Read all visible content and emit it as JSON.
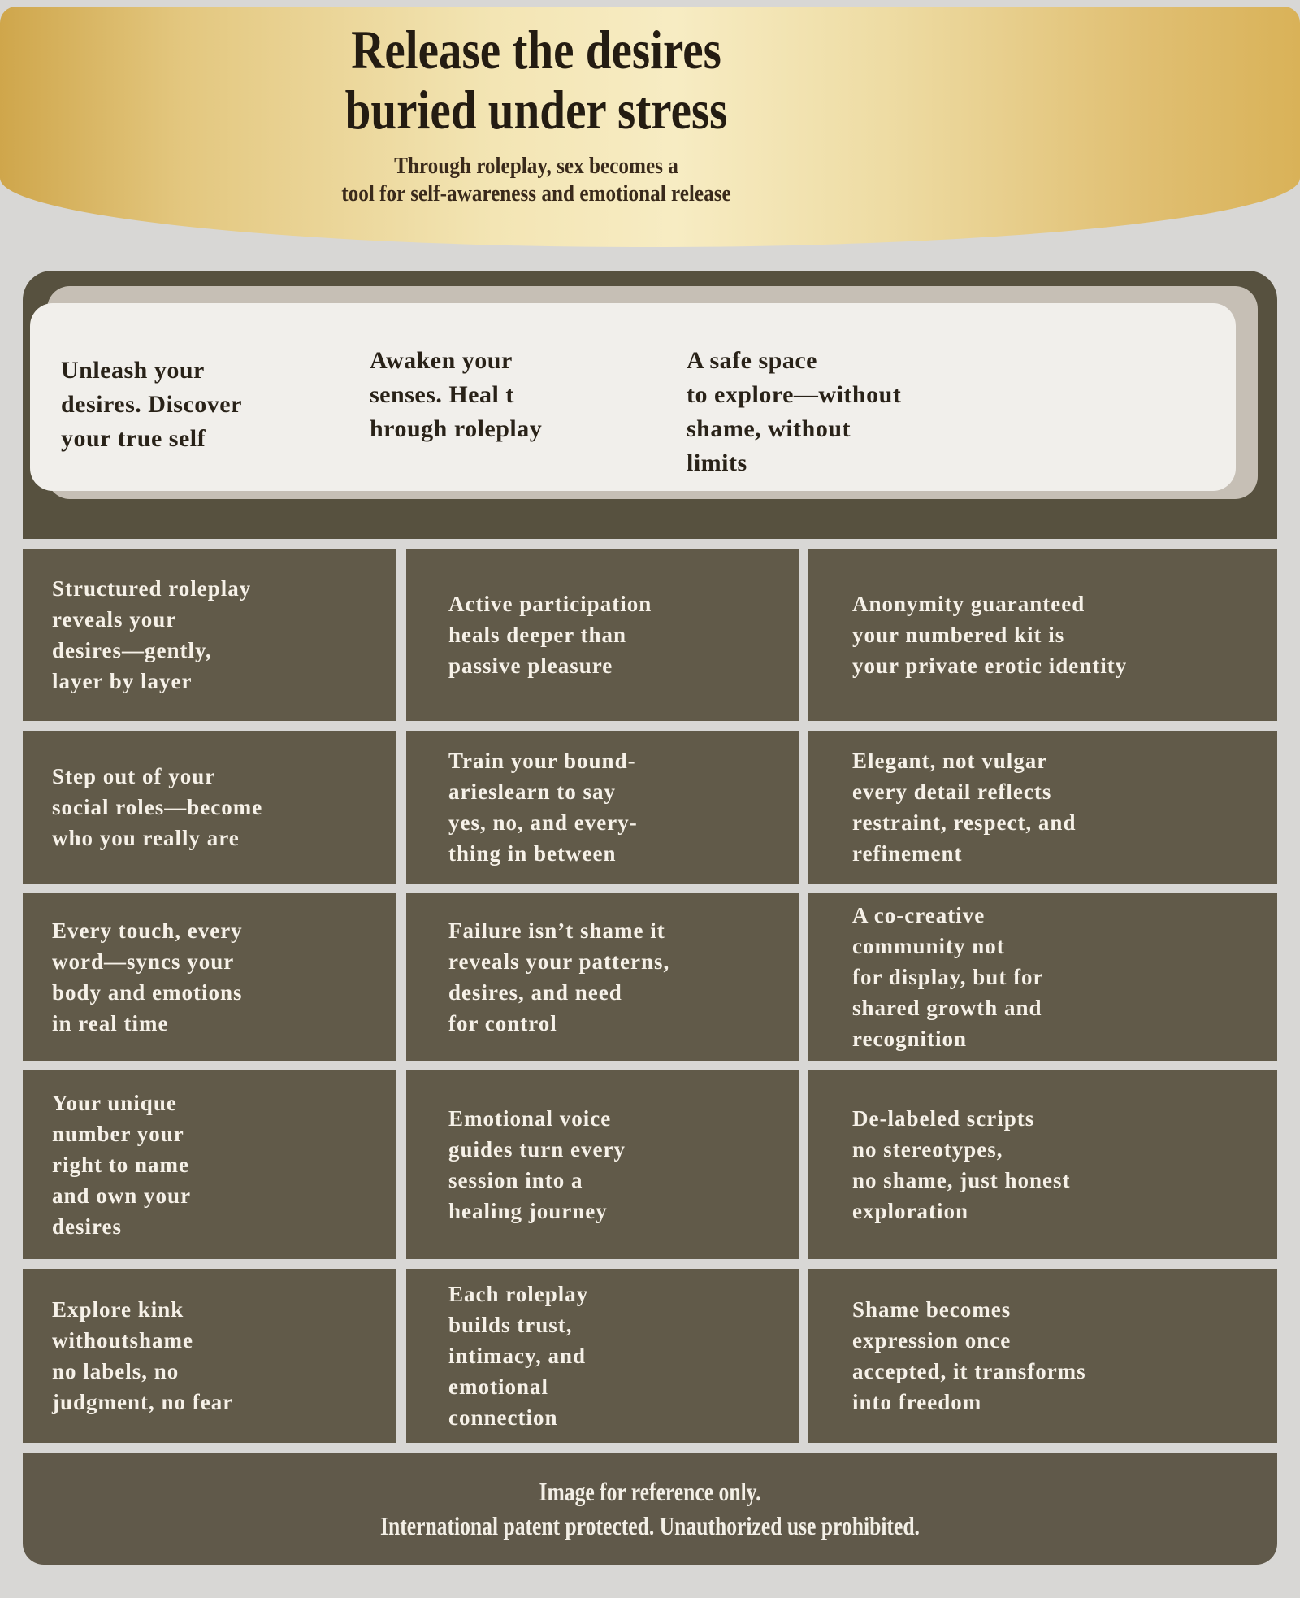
{
  "header": {
    "title": "Release the desires\nburied under stress",
    "subtitle": "Through roleplay, sex becomes a\ntool for self-awareness and emotional release"
  },
  "intro": {
    "col1": "Unleash your\ndesires. Discover\nyour true self",
    "col2": "Awaken your\nsenses. Heal t\nhrough roleplay",
    "col3": "A safe space\nto explore—without\nshame, without\nlimits"
  },
  "grid": {
    "rows": [
      {
        "c1": "Structured roleplay\nreveals your\ndesires—gently,\nlayer by layer",
        "c2": "Active participation\nheals deeper than\npassive pleasure",
        "c3": "Anonymity guaranteed\nyour numbered kit is\nyour private erotic identity"
      },
      {
        "c1": "Step out of your\nsocial roles—become\nwho you really are",
        "c2": "Train your bound-\narieslearn to say\nyes, no, and every-\nthing in between",
        "c3": "Elegant, not vulgar\nevery detail reflects\nrestraint, respect, and\nrefinement"
      },
      {
        "c1": "Every touch, every\nword—syncs your\nbody and emotions\nin real time",
        "c2": "Failure isn’t shame it\nreveals your patterns,\ndesires, and need\nfor control",
        "c3": "A co-creative\ncommunity not\nfor display, but for\nshared growth and\n recognition"
      },
      {
        "c1": "Your unique\nnumber your\nright to name\nand own your\ndesires",
        "c2": "Emotional voice\n guides turn every\nsession into a\nhealing journey",
        "c3": "De-labeled scripts\nno stereotypes,\nno shame, just honest\nexploration"
      },
      {
        "c1": "Explore kink\nwithoutshame\nno labels, no\njudgment, no fear",
        "c2": "Each roleplay\nbuilds trust,\nintimacy, and\nemotional\nconnection",
        "c3": "Shame becomes\nexpression once\naccepted, it transforms\ninto freedom"
      }
    ]
  },
  "footer": {
    "text": "Image for reference only.\nInternational patent protected. Unauthorized use prohibited."
  },
  "colors": {
    "page_bg": "#d8d7d5",
    "gold_start": "#cfa64b",
    "gold_light": "#f7ecc3",
    "gold_end": "#d9b258",
    "panel": "#57513f",
    "cell": "#615a49",
    "footer": "#60594a",
    "card": "#f1efeb",
    "card_shadow": "#c6bfb5",
    "text_light": "#f6f1e8",
    "text_title": "#241c12"
  }
}
